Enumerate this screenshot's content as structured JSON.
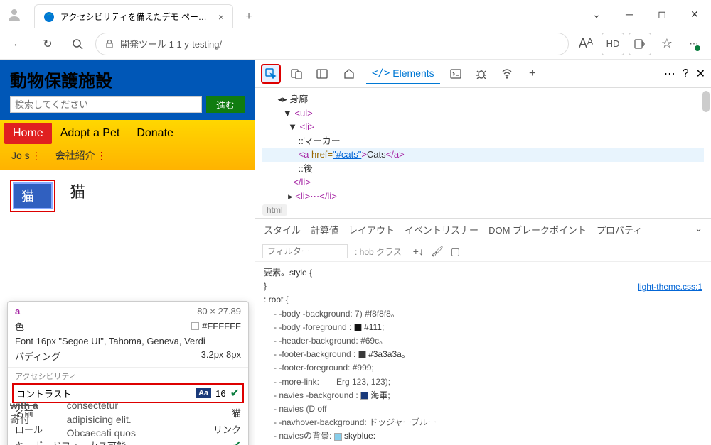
{
  "browser": {
    "tab_title": "アクセシビリティを備えたデモ ページは、",
    "url": "開発ツール 1 1 y-testing/",
    "addr_icons": {
      "read": "Aᴬ",
      "hd": "HD",
      "reader": "⿹"
    }
  },
  "page": {
    "title": "動物保護施設",
    "search_placeholder": "検索してください",
    "go_btn": "進む",
    "nav": [
      "Home",
      "Adopt a Pet",
      "Donate"
    ],
    "subnav": [
      "Jo s",
      "会社紹介"
    ],
    "cat_link": "猫",
    "cat_heading": "猫",
    "bottom_lines": [
      "with a",
      "寄付",
      "consectetur",
      "adipisicing elit.",
      "Obcaecati quos"
    ]
  },
  "tooltip": {
    "el": "a",
    "dims": "80 × 27.89",
    "color_label": "色",
    "color_val": "#FFFFFF",
    "font_label": "Font 16px \"Segoe UI\", Tahoma, Geneva, Verdi",
    "padding_label": "パディング",
    "padding_val": "3.2px 8px",
    "a11y_section": "アクセシビリティ",
    "contrast_label": "コントラスト",
    "contrast_badge": "Aa",
    "contrast_val": "16",
    "name_label": "名前",
    "name_val": "猫",
    "role_label": "ロール",
    "role_val": "リンク",
    "kb_label": "キーボードフォーカス可能"
  },
  "devtools": {
    "elements_tab": "Elements",
    "dom": {
      "body_label": "身廊",
      "ul": "<ul>",
      "li": "<li>",
      "marker": "::マーカー",
      "a_open": "<a ",
      "href_attr": "href=",
      "href_val": "\"#cats\"",
      "a_text": "Cats",
      "a_close": "</a>",
      "after": "::後",
      "li_close": "</li>",
      "li_collapsed": "<li>⋯</li>"
    },
    "crumb": "html",
    "style_tabs": [
      "スタイル",
      "計算値",
      "レイアウト",
      "イベントリスナー",
      "DOM ブレークポイント",
      "プロパティ"
    ],
    "filter_placeholder": "フィルター",
    "hob_class": ": hob クラス",
    "element_style": "要素。style {",
    "root_open": ": root {",
    "css_file": "light-theme.css:1",
    "props": [
      {
        "name": "- -body -background: 7) #f8f8f8。",
        "swatch": null
      },
      {
        "name": "- -body -foreground :",
        "swatch": "#111111",
        "val": "#111;"
      },
      {
        "name": "- -header-background: #69c。",
        "swatch": null
      },
      {
        "name": "- -footer-background :",
        "swatch": "#3a3a3a",
        "val": "#3a3a3a。"
      },
      {
        "name": "- -footer-foreground: #999;",
        "swatch": null
      },
      {
        "name": "- -more-link:　　Erg 123, 123);",
        "swatch": null
      },
      {
        "name": "- navies -background :",
        "swatch": "#1a3a7a",
        "val": "海軍;"
      },
      {
        "name": "- navies (D off",
        "swatch": null
      },
      {
        "name": "- -navhover-background: ドッジャーブルー",
        "swatch": null
      },
      {
        "name": "- naviesの背景:",
        "swatch": "#87ceeb",
        "val": "skyblue:"
      }
    ]
  }
}
